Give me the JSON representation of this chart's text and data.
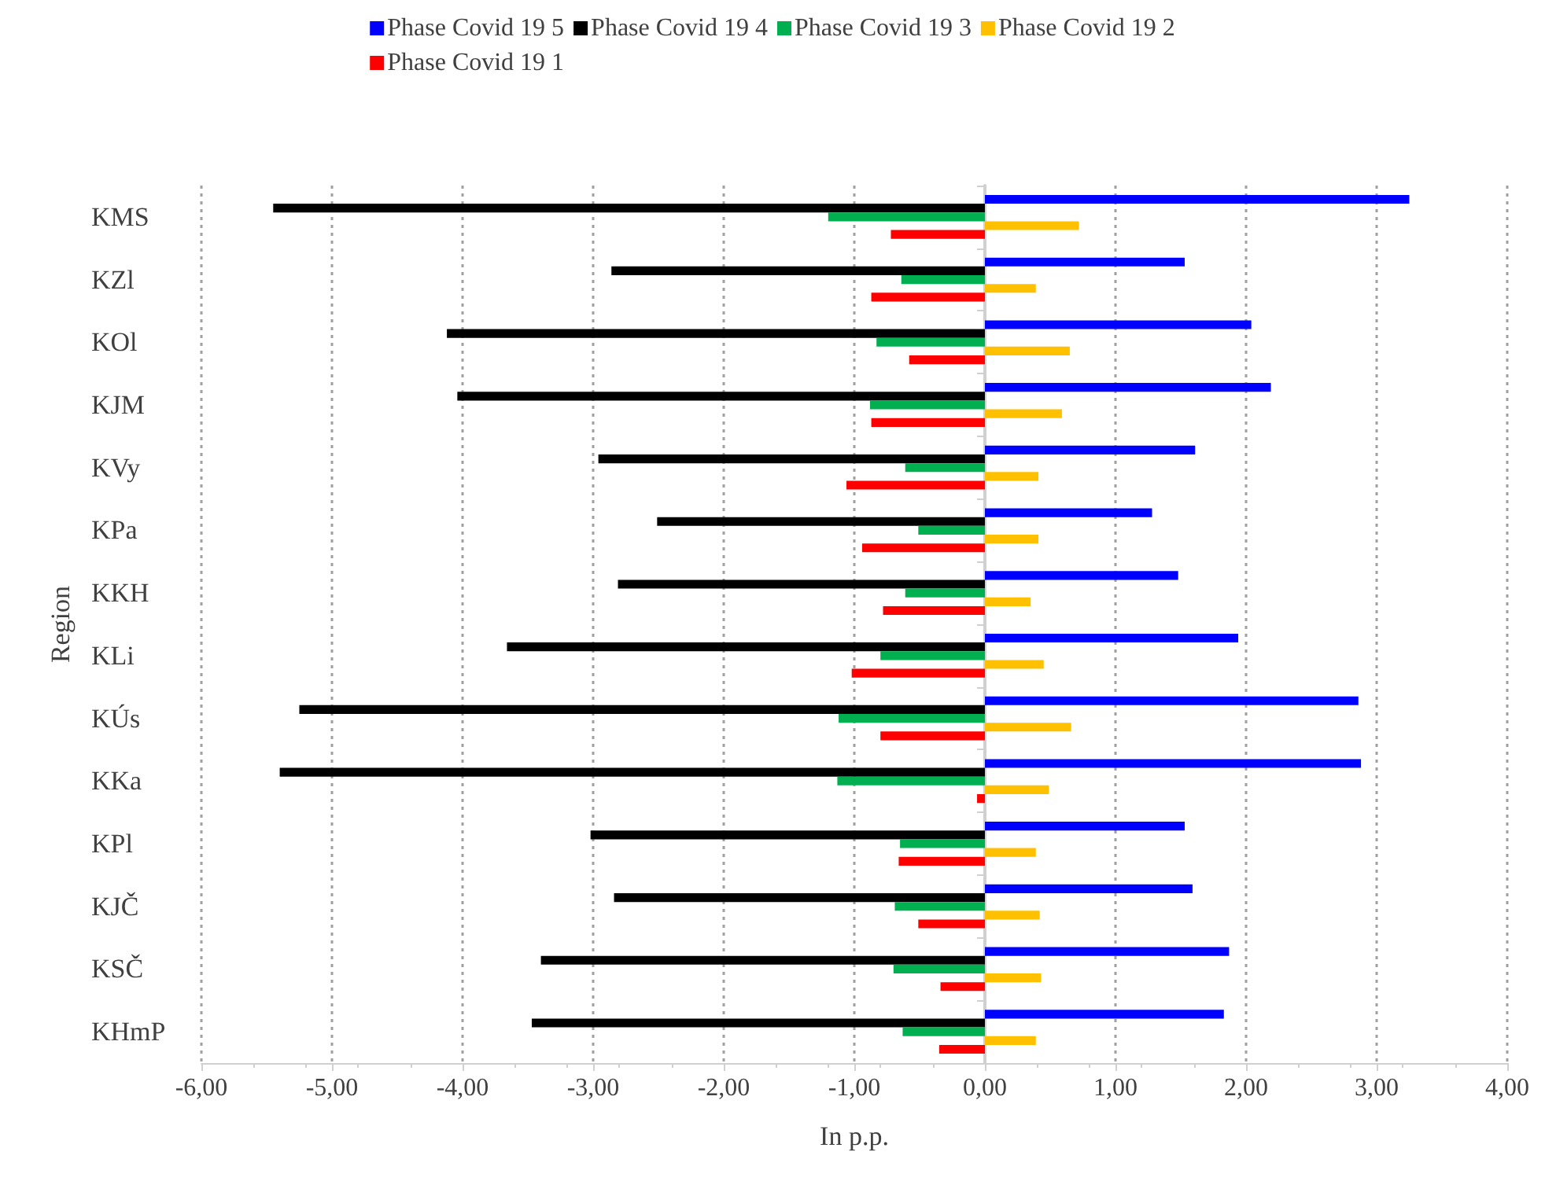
{
  "chart_data": {
    "type": "bar",
    "orientation": "horizontal",
    "xlabel": "In p.p.",
    "ylabel": "Region",
    "categories": [
      "KMS",
      "KZl",
      "KOl",
      "KJM",
      "KVy",
      "KPa",
      "KKH",
      "KLi",
      "KÚs",
      "KKa",
      "KPl",
      "KJČ",
      "KSČ",
      "KHmP"
    ],
    "series": [
      {
        "name": "Phase Covid 19 5",
        "color": "#0000ff",
        "values": [
          3.25,
          1.53,
          2.04,
          2.19,
          1.61,
          1.28,
          1.48,
          1.94,
          2.86,
          2.88,
          1.53,
          1.59,
          1.87,
          1.83
        ]
      },
      {
        "name": "Phase Covid 19 4",
        "color": "#000000",
        "values": [
          -5.45,
          -2.86,
          -4.12,
          -4.04,
          -2.96,
          -2.51,
          -2.81,
          -3.66,
          -5.25,
          -5.4,
          -3.02,
          -2.84,
          -3.4,
          -3.47
        ]
      },
      {
        "name": "Phase Covid 19 3",
        "color": "#00b050",
        "values": [
          -1.2,
          -0.64,
          -0.83,
          -0.88,
          -0.61,
          -0.51,
          -0.61,
          -0.8,
          -1.12,
          -1.13,
          -0.65,
          -0.69,
          -0.7,
          -0.63
        ]
      },
      {
        "name": "Phase Covid 19 2",
        "color": "#ffc000",
        "values": [
          0.72,
          0.39,
          0.65,
          0.59,
          0.41,
          0.41,
          0.35,
          0.45,
          0.66,
          0.49,
          0.39,
          0.42,
          0.43,
          0.39
        ]
      },
      {
        "name": "Phase Covid 19 1",
        "color": "#ff0000",
        "values": [
          -0.72,
          -0.87,
          -0.58,
          -0.87,
          -1.06,
          -0.94,
          -0.78,
          -1.02,
          -0.8,
          -0.06,
          -0.66,
          -0.51,
          -0.34,
          -0.35
        ]
      }
    ],
    "xlim": [
      -6,
      4
    ],
    "xticks": [
      {
        "value": -6,
        "label": "-6,00"
      },
      {
        "value": -5,
        "label": "-5,00"
      },
      {
        "value": -4,
        "label": "-4,00"
      },
      {
        "value": -3,
        "label": "-3,00"
      },
      {
        "value": -2,
        "label": "-2,00"
      },
      {
        "value": -1,
        "label": "-1,00"
      },
      {
        "value": 0,
        "label": "0,00"
      },
      {
        "value": 1,
        "label": "1,00"
      },
      {
        "value": 2,
        "label": "2,00"
      },
      {
        "value": 3,
        "label": "3,00"
      },
      {
        "value": 4,
        "label": "4,00"
      }
    ],
    "grid": "x",
    "legend": "top"
  }
}
